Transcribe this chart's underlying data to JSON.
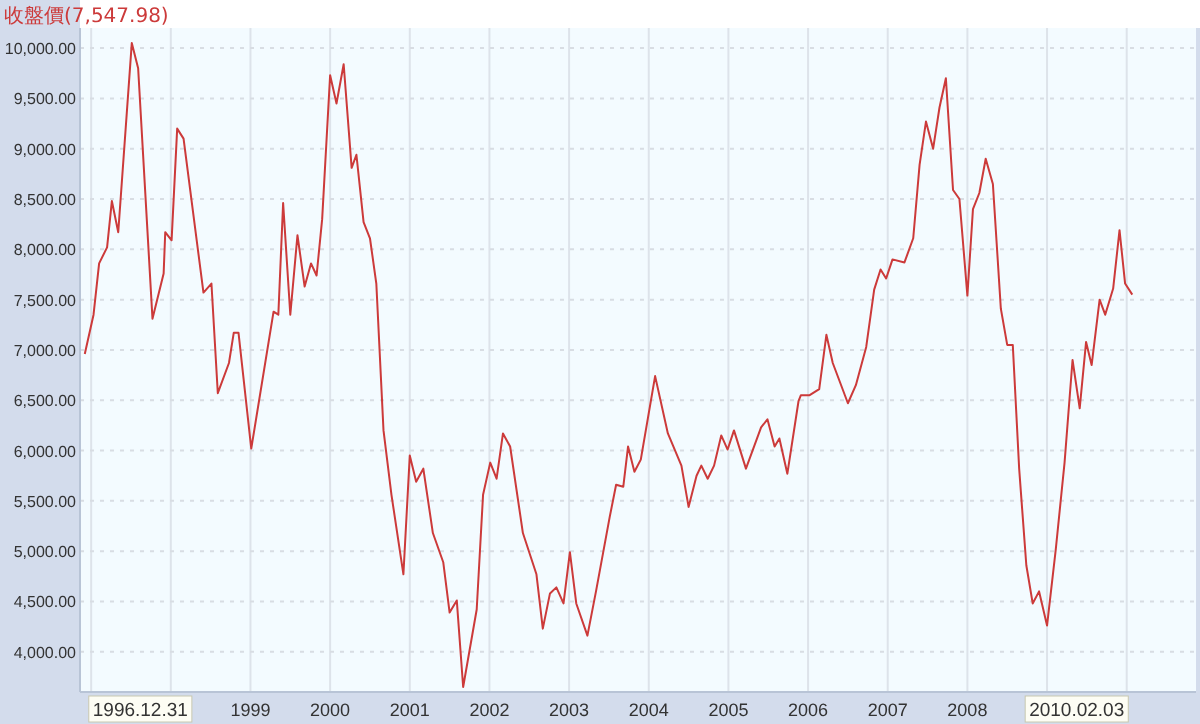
{
  "chart_data": {
    "type": "line",
    "title": "收盤價(7,547.98)",
    "annotations": [
      "1996.12.31",
      "2010.02.03"
    ],
    "xlim": [
      1996.86,
      2010.87
    ],
    "ylim": [
      3600,
      10200
    ],
    "xticks": [
      {
        "value": 1997,
        "label": null
      },
      {
        "value": 1998,
        "label": null
      },
      1999,
      2000,
      2001,
      2002,
      2003,
      2004,
      2005,
      2006,
      2007,
      2008,
      {
        "value": 2009,
        "label": null
      },
      {
        "value": 2010,
        "label": null
      }
    ],
    "yticks": [
      {
        "value": 4000,
        "label": "4,000.00"
      },
      {
        "value": 4500,
        "label": "4,500.00"
      },
      {
        "value": 5000,
        "label": "5,000.00"
      },
      {
        "value": 5500,
        "label": "5,500.00"
      },
      {
        "value": 6000,
        "label": "6,000.00"
      },
      {
        "value": 6500,
        "label": "6,500.00"
      },
      {
        "value": 7000,
        "label": "7,000.00"
      },
      {
        "value": 7500,
        "label": "7,500.00"
      },
      {
        "value": 8000,
        "label": "8,000.00"
      },
      {
        "value": 8500,
        "label": "8,500.00"
      },
      {
        "value": 9000,
        "label": "9,000.00"
      },
      {
        "value": 9500,
        "label": "9,500.00"
      },
      {
        "value": 10000,
        "label": "10,000.00"
      }
    ],
    "grid": true,
    "marker": "none",
    "line_style": "solid",
    "series": [
      {
        "color": "#cc3a3a",
        "x": [
          1996.92,
          1997.03,
          1997.1,
          1997.2,
          1997.26,
          1997.34,
          1997.51,
          1997.59,
          1997.77,
          1997.91,
          1997.93,
          1998.01,
          1998.08,
          1998.16,
          1998.41,
          1998.51,
          1998.59,
          1998.73,
          1998.79,
          1998.85,
          1999.01,
          1999.29,
          1999.35,
          1999.41,
          1999.5,
          1999.59,
          1999.68,
          1999.76,
          1999.83,
          1999.9,
          2000.0,
          2000.08,
          2000.17,
          2000.27,
          2000.33,
          2000.42,
          2000.5,
          2000.58,
          2000.67,
          2000.77,
          2000.92,
          2001.0,
          2001.08,
          2001.17,
          2001.29,
          2001.42,
          2001.5,
          2001.59,
          2001.67,
          2001.84,
          2001.92,
          2002.01,
          2002.09,
          2002.17,
          2002.26,
          2002.42,
          2002.59,
          2002.67,
          2002.76,
          2002.84,
          2002.93,
          2003.01,
          2003.09,
          2003.23,
          2003.34,
          2003.51,
          2003.59,
          2003.68,
          2003.74,
          2003.82,
          2003.9,
          2004.08,
          2004.24,
          2004.41,
          2004.5,
          2004.6,
          2004.66,
          2004.74,
          2004.82,
          2004.91,
          2004.99,
          2005.07,
          2005.22,
          2005.41,
          2005.49,
          2005.58,
          2005.64,
          2005.74,
          2005.88,
          2005.91,
          2006.02,
          2006.14,
          2006.23,
          2006.31,
          2006.5,
          2006.6,
          2006.73,
          2006.83,
          2006.91,
          2006.98,
          2007.06,
          2007.21,
          2007.32,
          2007.4,
          2007.48,
          2007.57,
          2007.65,
          2007.73,
          2007.82,
          2007.9,
          2008.0,
          2008.07,
          2008.15,
          2008.23,
          2008.32,
          2008.42,
          2008.5,
          2008.57,
          2008.65,
          2008.74,
          2008.82,
          2008.9,
          2009.0,
          2009.11,
          2009.22,
          2009.32,
          2009.41,
          2009.49,
          2009.56,
          2009.66,
          2009.73,
          2009.83,
          2009.91,
          2009.98,
          2010.07
        ],
        "values": [
          6960,
          7350,
          7860,
          8020,
          8480,
          8170,
          10050,
          9800,
          7310,
          7760,
          8170,
          8090,
          9200,
          9100,
          7570,
          7660,
          6570,
          6870,
          7170,
          7170,
          6020,
          7380,
          7350,
          8460,
          7350,
          8140,
          7630,
          7860,
          7740,
          8300,
          9730,
          9450,
          9840,
          8810,
          8940,
          8270,
          8110,
          7660,
          6200,
          5560,
          4770,
          5950,
          5690,
          5820,
          5180,
          4890,
          4390,
          4510,
          3650,
          4420,
          5560,
          5880,
          5720,
          6170,
          6040,
          5180,
          4770,
          4230,
          4580,
          4640,
          4480,
          4990,
          4480,
          4160,
          4610,
          5340,
          5660,
          5640,
          6040,
          5790,
          5910,
          6740,
          6170,
          5850,
          5440,
          5750,
          5850,
          5720,
          5850,
          6150,
          6010,
          6200,
          5820,
          6230,
          6310,
          6040,
          6120,
          5770,
          6490,
          6550,
          6550,
          6610,
          7150,
          6870,
          6470,
          6650,
          7030,
          7600,
          7800,
          7710,
          7900,
          7870,
          8110,
          8840,
          9270,
          9000,
          9410,
          9700,
          8590,
          8500,
          7540,
          8400,
          8560,
          8900,
          8650,
          7410,
          7050,
          7050,
          5820,
          4860,
          4480,
          4600,
          4260,
          5020,
          5880,
          6900,
          6420,
          7080,
          6850,
          7500,
          7350,
          7610,
          8190,
          7660,
          7550
        ]
      }
    ]
  }
}
